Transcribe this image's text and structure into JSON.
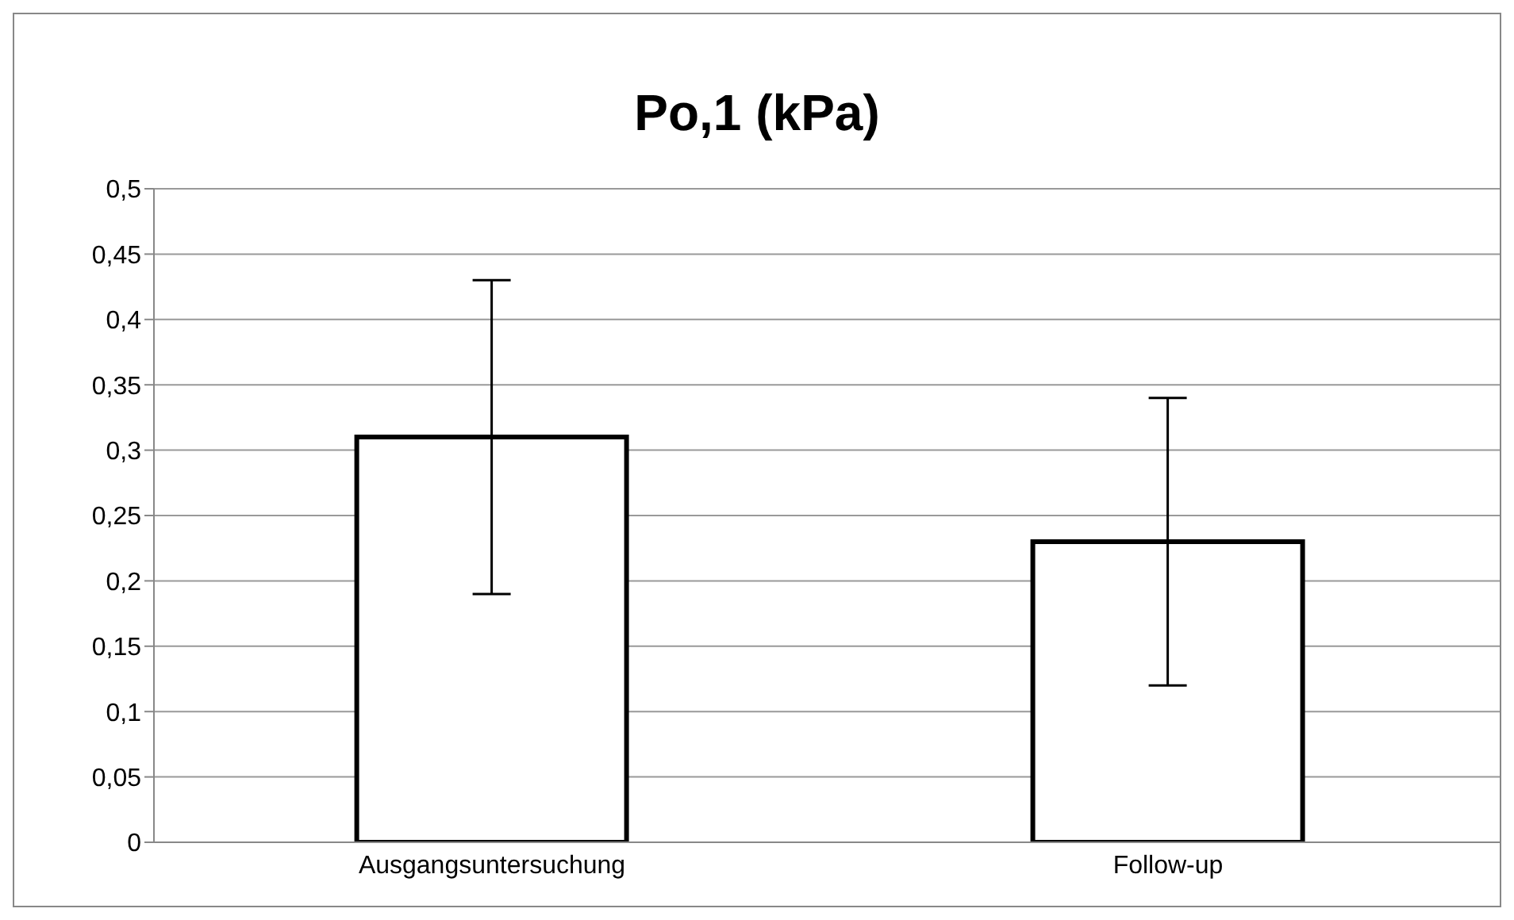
{
  "chart_data": {
    "type": "bar",
    "title": "Po,1 (kPa)",
    "categories": [
      "Ausgangsuntersuchung",
      "Follow-up"
    ],
    "values": [
      0.31,
      0.23
    ],
    "errors": [
      0.12,
      0.11
    ],
    "color": "#ffffff",
    "ylim": [
      0,
      0.5
    ],
    "yticks": [
      0,
      {
        "value": 0.05,
        "label": "0,05"
      },
      {
        "value": 0.1,
        "label": "0,1"
      },
      {
        "value": 0.15,
        "label": "0,15"
      },
      {
        "value": 0.2,
        "label": "0,2"
      },
      {
        "value": 0.25,
        "label": "0,25"
      },
      {
        "value": 0.3,
        "label": "0,3"
      },
      {
        "value": 0.35,
        "label": "0,35"
      },
      {
        "value": 0.4,
        "label": "0,4"
      },
      {
        "value": 0.45,
        "label": "0,45"
      },
      {
        "value": 0.5,
        "label": "0,5"
      }
    ],
    "grid": "y"
  }
}
